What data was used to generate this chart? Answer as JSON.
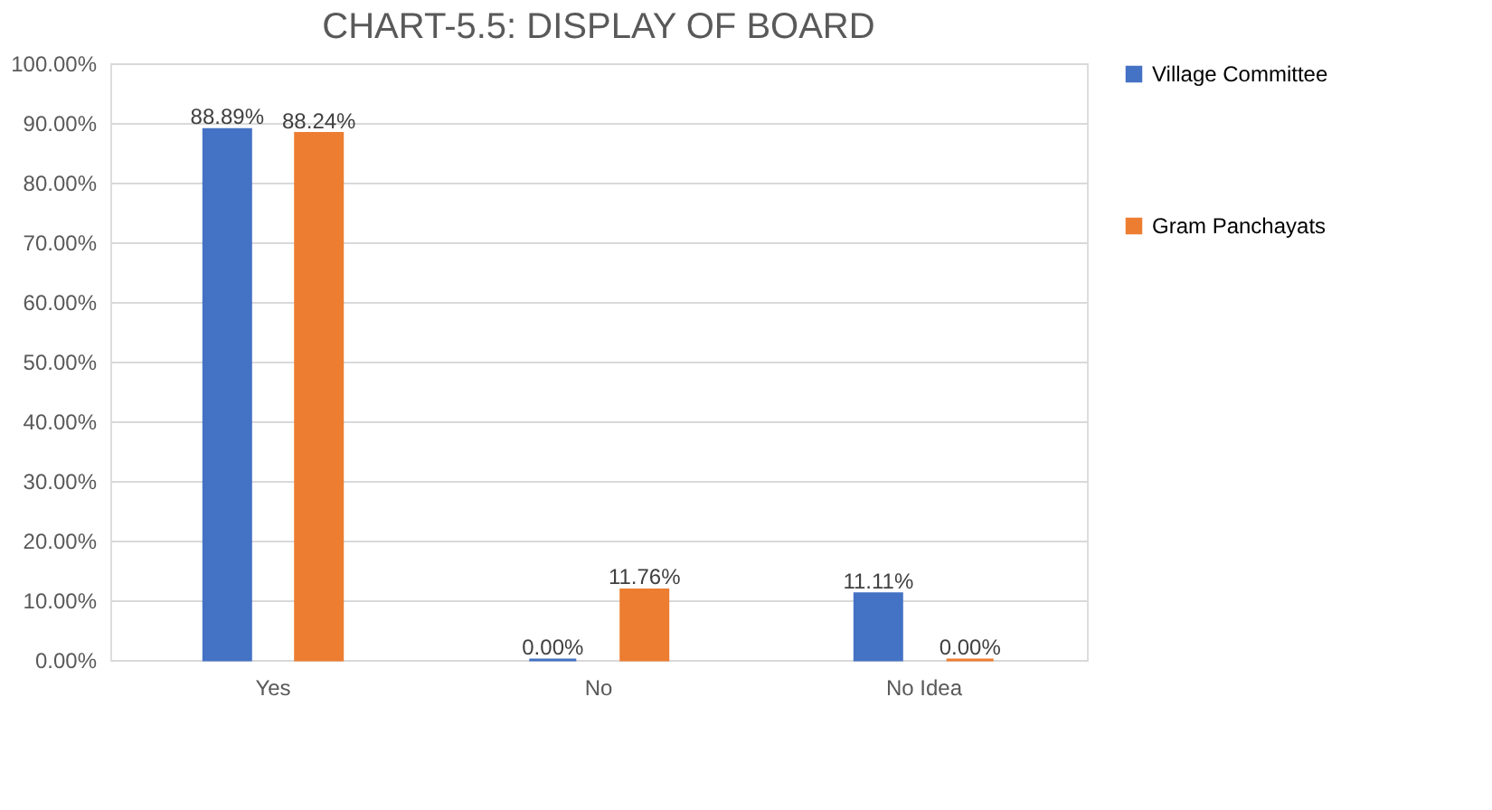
{
  "chart_data": {
    "type": "bar",
    "title": "CHART-5.5: DISPLAY OF BOARD",
    "categories": [
      "Yes",
      "No",
      "No Idea"
    ],
    "series": [
      {
        "name": "Village Committee",
        "color": "#4472c4",
        "values": [
          88.89,
          0,
          11.11
        ],
        "value_labels": [
          "88.89%",
          "0.00%",
          "11.11%"
        ]
      },
      {
        "name": "Gram Panchayats",
        "color": "#ed7d31",
        "values": [
          88.24,
          11.76,
          0
        ],
        "value_labels": [
          "88.24%",
          "11.76%",
          "0.00%"
        ]
      }
    ],
    "ylim": [
      0,
      100
    ],
    "yticks": [
      {
        "value": 0,
        "label": "0.00%"
      },
      {
        "value": 10,
        "label": "10.00%"
      },
      {
        "value": 20,
        "label": "20.00%"
      },
      {
        "value": 30,
        "label": "30.00%"
      },
      {
        "value": 40,
        "label": "40.00%"
      },
      {
        "value": 50,
        "label": "50.00%"
      },
      {
        "value": 60,
        "label": "60.00%"
      },
      {
        "value": 70,
        "label": "70.00%"
      },
      {
        "value": 80,
        "label": "80.00%"
      },
      {
        "value": 90,
        "label": "90.00%"
      },
      {
        "value": 100,
        "label": "100.00%"
      }
    ],
    "grid": "y",
    "legend": "right"
  }
}
